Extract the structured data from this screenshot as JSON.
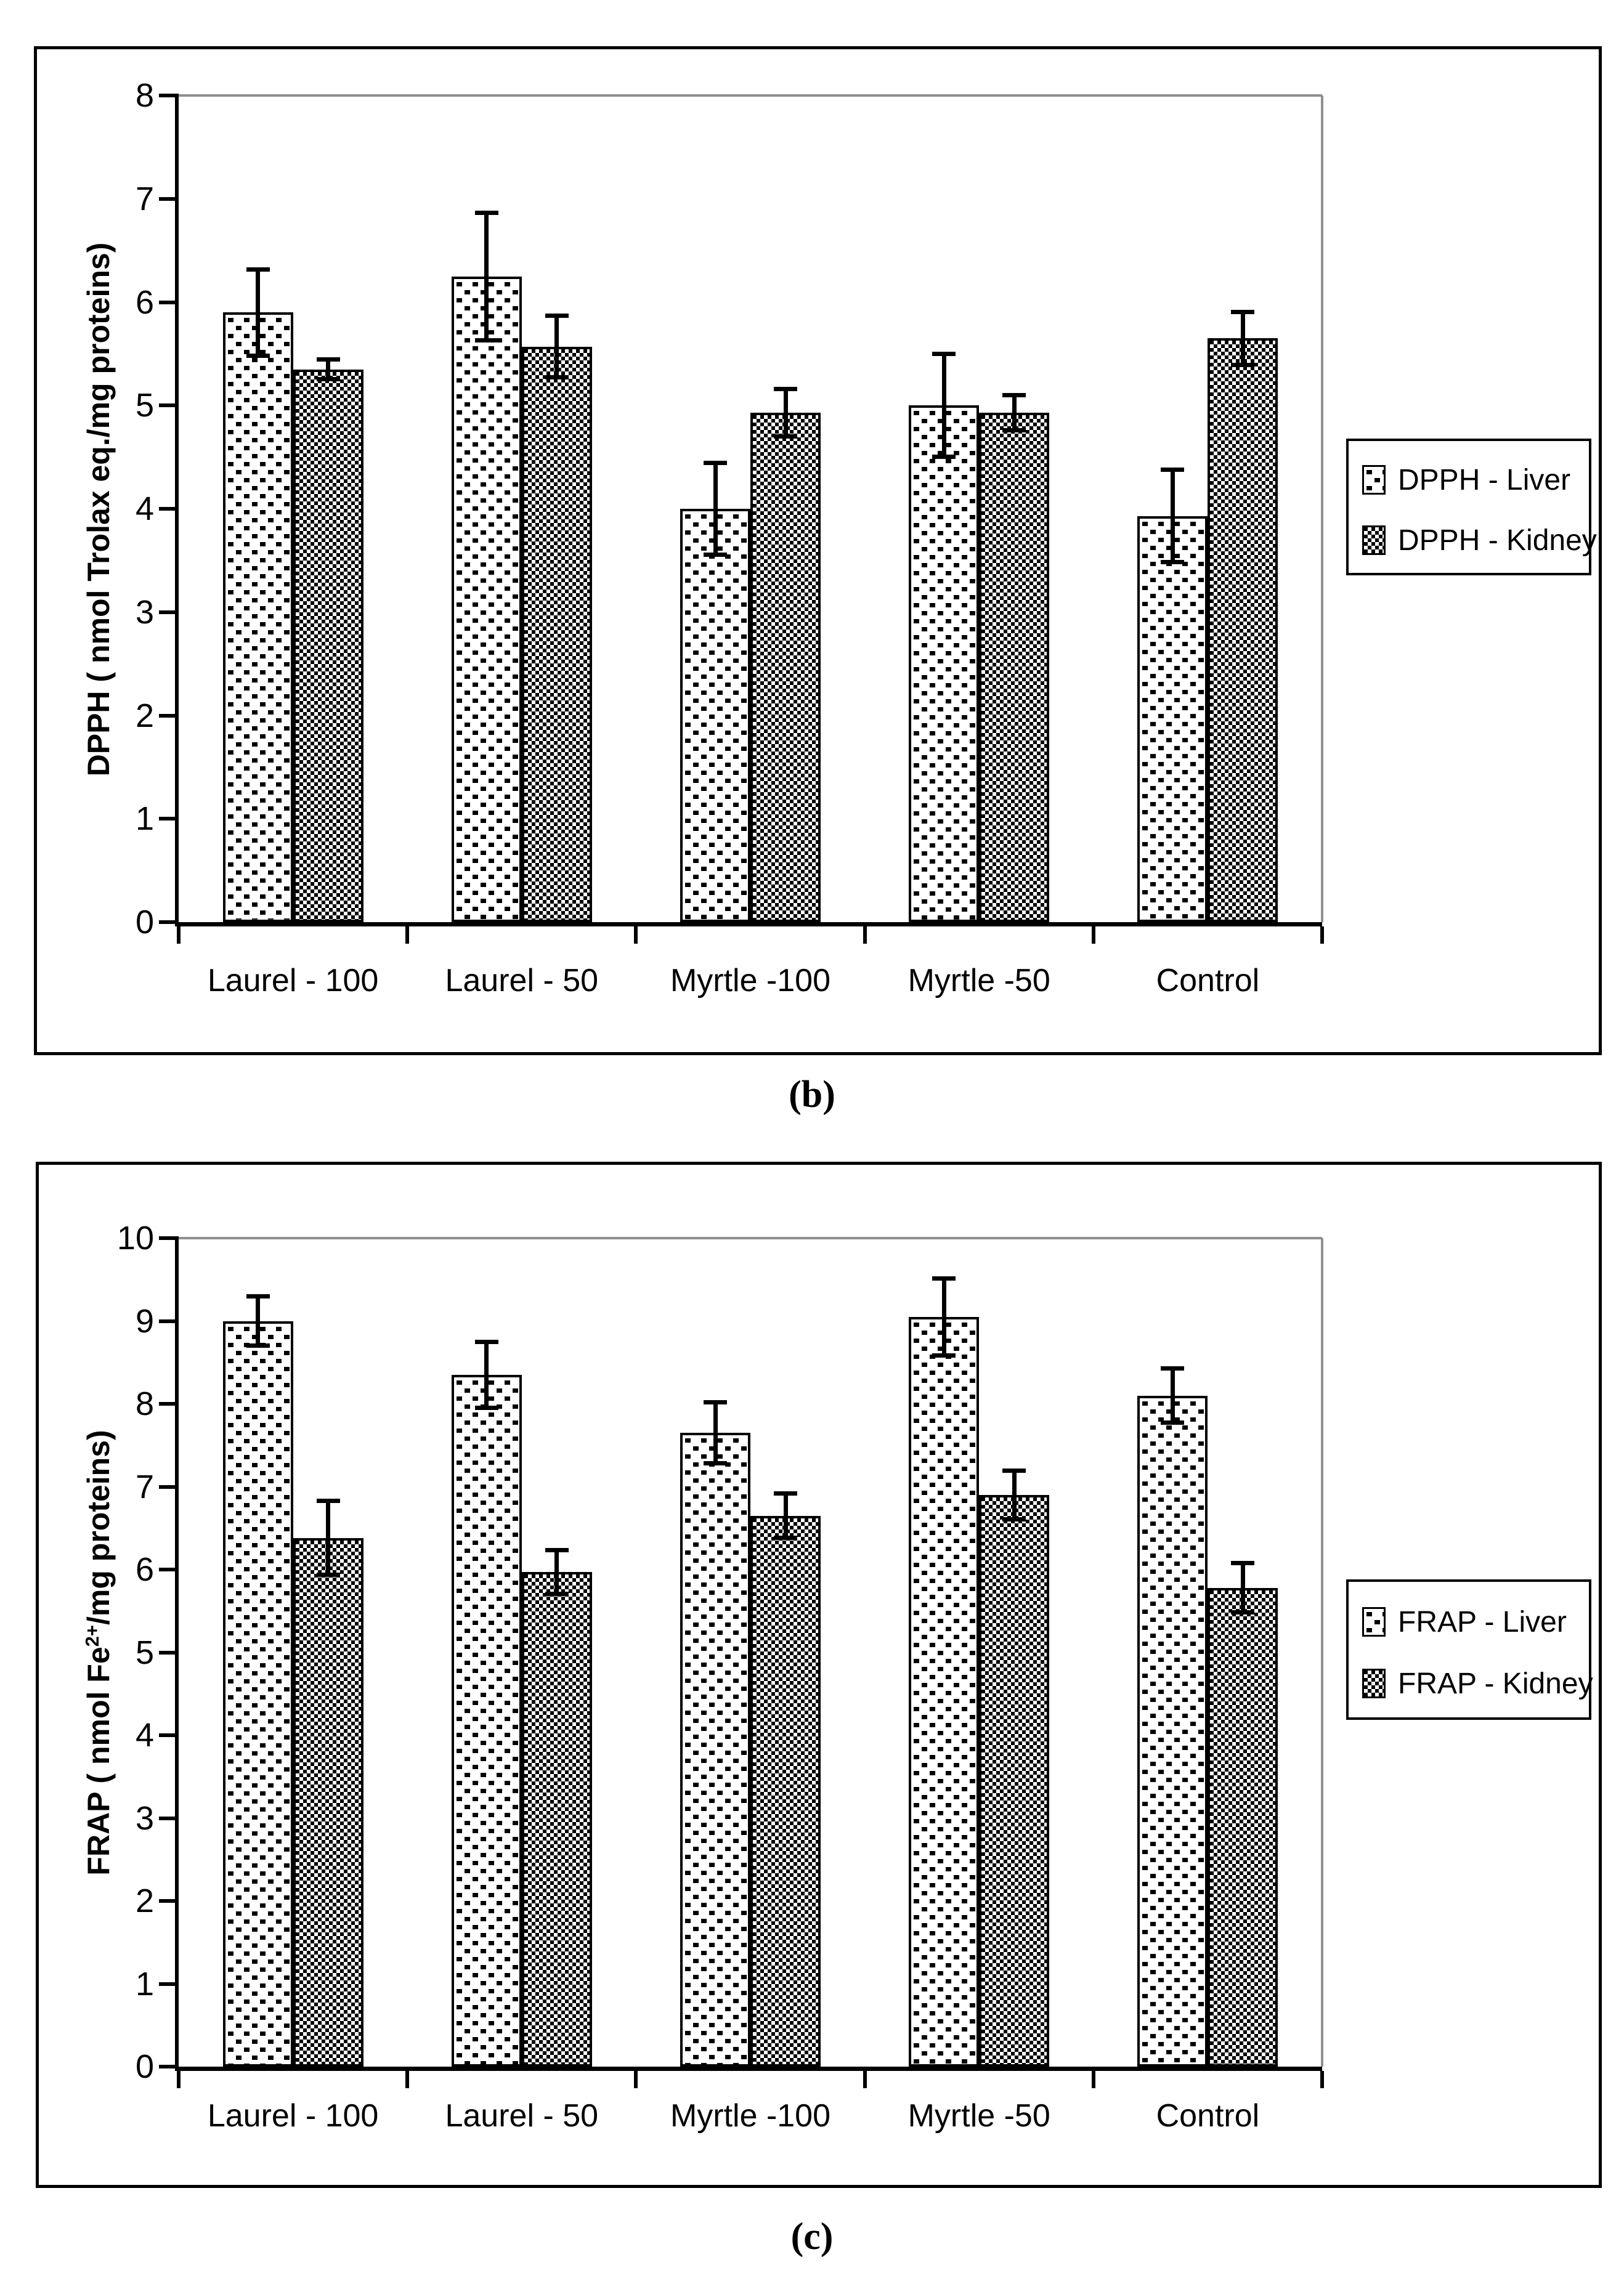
{
  "figure": {
    "background": "#ffffff",
    "axis_color": "#000000",
    "gridline_color": "#8f8f8f",
    "bar_fill": "#ffffff",
    "pattern_color": "#000000"
  },
  "chart_data": [
    {
      "panel": "b",
      "type": "bar",
      "title": "",
      "caption": "(b)",
      "ylabel": "DPPH ( nmol Trolax eq./mg proteins)",
      "ylabel_pre": "DPPH ( nmol Trolax eq./mg proteins)",
      "ylabel_sup": "",
      "ylabel_post": "",
      "xlabel": "",
      "ylim": [
        0,
        8
      ],
      "ytick_step": 1,
      "gridlines": "top-border-only",
      "legend_position": "right-outside",
      "categories": [
        "Laurel - 100",
        "Laurel - 50",
        "Myrtle -100",
        "Myrtle -50",
        "Control"
      ],
      "series": [
        {
          "name": "DPPH - Liver",
          "organ": "Liver",
          "pattern": "dots",
          "values": [
            5.9,
            6.25,
            4.0,
            5.0,
            3.93
          ],
          "errors": [
            0.42,
            0.62,
            0.45,
            0.5,
            0.45
          ]
        },
        {
          "name": "DPPH - Kidney",
          "organ": "Kidney",
          "pattern": "checker",
          "values": [
            5.35,
            5.57,
            4.93,
            4.93,
            5.65
          ],
          "errors": [
            0.1,
            0.3,
            0.23,
            0.17,
            0.26
          ]
        }
      ]
    },
    {
      "panel": "c",
      "type": "bar",
      "title": "",
      "caption": "(c)",
      "ylabel": "FRAP ( nmol Fe2+/mg proteins)",
      "ylabel_pre": "FRAP ( nmol Fe",
      "ylabel_sup": "2+",
      "ylabel_post": "/mg proteins)",
      "xlabel": "",
      "ylim": [
        0,
        10
      ],
      "ytick_step": 1,
      "gridlines": "top-border-only",
      "legend_position": "right-outside",
      "categories": [
        "Laurel - 100",
        "Laurel - 50",
        "Myrtle -100",
        "Myrtle -50",
        "Control"
      ],
      "series": [
        {
          "name": "FRAP - Liver",
          "organ": "Liver",
          "pattern": "dots",
          "values": [
            9.0,
            8.35,
            7.65,
            9.05,
            8.1
          ],
          "errors": [
            0.3,
            0.4,
            0.37,
            0.47,
            0.33
          ]
        },
        {
          "name": "FRAP - Kidney",
          "organ": "Kidney",
          "pattern": "checker",
          "values": [
            6.38,
            5.97,
            6.65,
            6.9,
            5.78
          ],
          "errors": [
            0.45,
            0.27,
            0.27,
            0.3,
            0.3
          ]
        }
      ]
    }
  ]
}
